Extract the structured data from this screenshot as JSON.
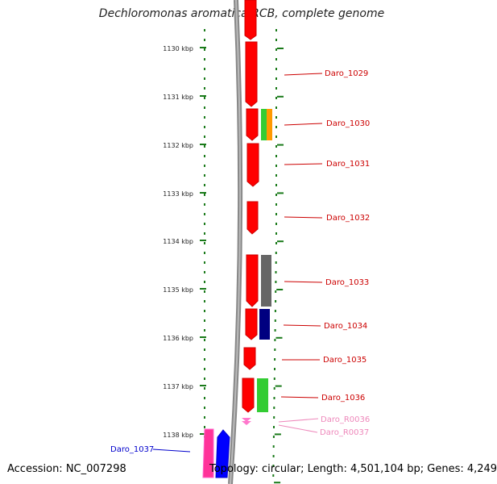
{
  "title": "Dechloromonas aromatica RCB, complete genome",
  "footer": {
    "accession": "Accession: NC_007298",
    "topology": "Topology: circular; Length: 4,501,104 bp; Genes: 4,249"
  },
  "scale": {
    "ticks": [
      "1130 kbp",
      "1131 kbp",
      "1132 kbp",
      "1133 kbp",
      "1134 kbp",
      "1135 kbp",
      "1136 kbp",
      "1137 kbp",
      "1138 kbp"
    ]
  },
  "genes": [
    {
      "label": "Daro_1029",
      "color": "#cc0000"
    },
    {
      "label": "Daro_1030",
      "color": "#cc0000"
    },
    {
      "label": "Daro_1031",
      "color": "#cc0000"
    },
    {
      "label": "Daro_1032",
      "color": "#cc0000"
    },
    {
      "label": "Daro_1033",
      "color": "#cc0000"
    },
    {
      "label": "Daro_1034",
      "color": "#cc0000"
    },
    {
      "label": "Daro_1035",
      "color": "#cc0000"
    },
    {
      "label": "Daro_1036",
      "color": "#cc0000"
    },
    {
      "label": "Daro_R0036",
      "color": "#ee88bb"
    },
    {
      "label": "Daro_R0037",
      "color": "#ee88bb"
    },
    {
      "label": "Daro_1037",
      "color": "#0000cc"
    }
  ],
  "colors": {
    "cds_forward": "#ff0000",
    "rna": "#ff66cc",
    "scale_dots": "#1a7a1a",
    "backbone": "#888888",
    "cog_green": "#33cc33",
    "cog_orange": "#ff9900",
    "cog_gray": "#666666",
    "cog_navy": "#000080",
    "cog_magenta": "#ff3399",
    "cds_reverse": "#0000ff"
  }
}
